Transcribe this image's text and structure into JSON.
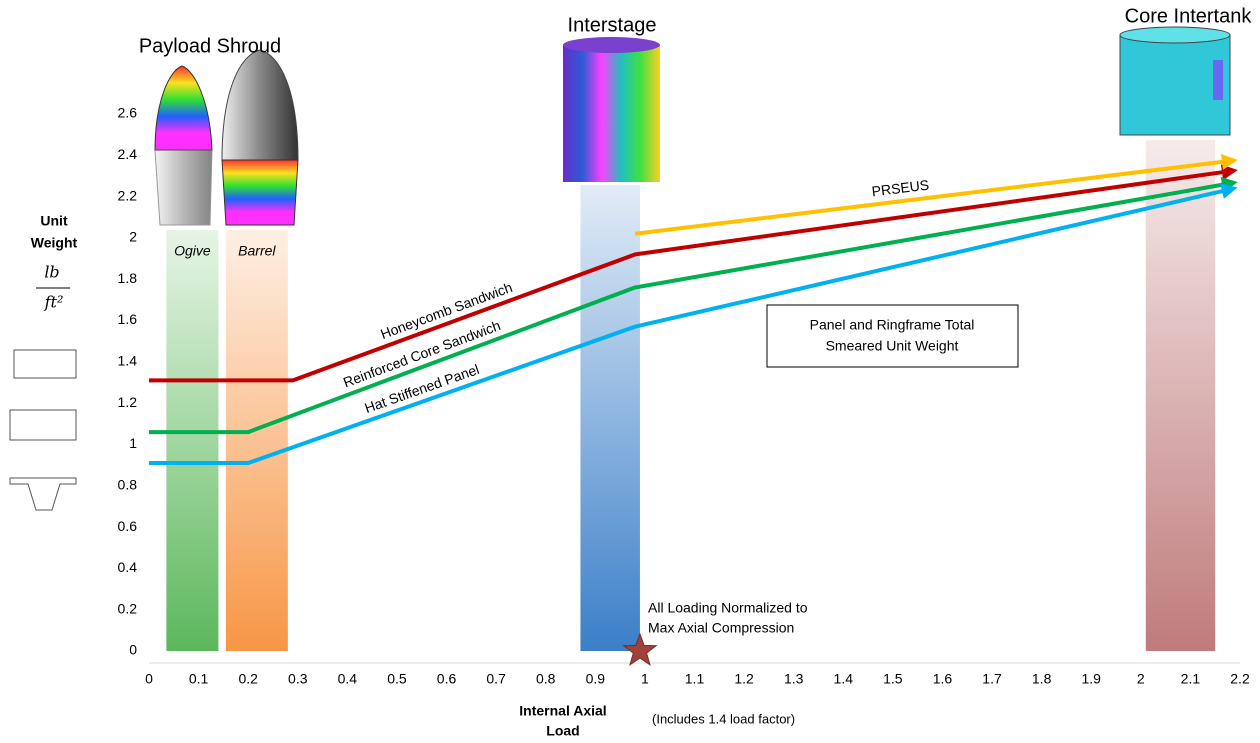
{
  "chart_data": {
    "type": "line",
    "y_label": [
      "Unit",
      "Weight"
    ],
    "unit_numerator": "lb",
    "unit_denominator": "ft²",
    "x_label": [
      "Internal Axial",
      "Load"
    ],
    "x_note": "(Includes 1.4 load factor)",
    "xlim": [
      0,
      2.2
    ],
    "xticks": [
      0,
      0.1,
      0.2,
      0.3,
      0.4,
      0.5,
      0.6,
      0.7,
      0.8,
      0.9,
      1,
      1.1,
      1.2,
      1.3,
      1.4,
      1.5,
      1.6,
      1.7,
      1.8,
      1.9,
      2,
      2.1,
      2.2
    ],
    "ylim": [
      0,
      2.6
    ],
    "yticks": [
      0,
      0.2,
      0.4,
      0.6,
      0.8,
      1,
      1.2,
      1.4,
      1.6,
      1.8,
      2,
      2.2,
      2.4,
      2.6
    ],
    "series": [
      {
        "name": "Honeycomb Sandwich",
        "color": "#c00000",
        "x": [
          0,
          0.29,
          0.98,
          2.17
        ],
        "values": [
          1.31,
          1.31,
          1.92,
          2.32
        ]
      },
      {
        "name": "Reinforced Core Sandwich",
        "color": "#00b050",
        "x": [
          0,
          0.2,
          0.98,
          2.17
        ],
        "values": [
          1.06,
          1.06,
          1.76,
          2.26
        ]
      },
      {
        "name": "Hat Stiffened Panel",
        "color": "#00b0f0",
        "x": [
          0,
          0.2,
          0.98,
          2.17
        ],
        "values": [
          0.91,
          0.91,
          1.57,
          2.23
        ]
      },
      {
        "name": "PRSEUS",
        "color": "#ffc000",
        "x": [
          0.98,
          2.17
        ],
        "values": [
          2.02,
          2.37
        ]
      }
    ],
    "bands": [
      {
        "label": "Ogive",
        "x": [
          0.035,
          0.14
        ],
        "color": "#5cb85c"
      },
      {
        "label": "Barrel",
        "x": [
          0.155,
          0.28
        ],
        "color": "#f79646"
      },
      {
        "x": [
          0.87,
          0.99
        ],
        "color": "#3a7fc8"
      },
      {
        "x": [
          2.01,
          2.15
        ],
        "color": "#c07b7b"
      }
    ],
    "components": [
      "Payload Shroud",
      "Interstage",
      "Core Intertank"
    ],
    "marker": {
      "x": 0.99,
      "y": 0,
      "color": "#a0413a"
    },
    "annotation": [
      "All Loading Normalized to",
      "Max Axial Compression"
    ],
    "box_text": [
      "Panel and Ringframe Total",
      "Smeared Unit Weight"
    ]
  }
}
